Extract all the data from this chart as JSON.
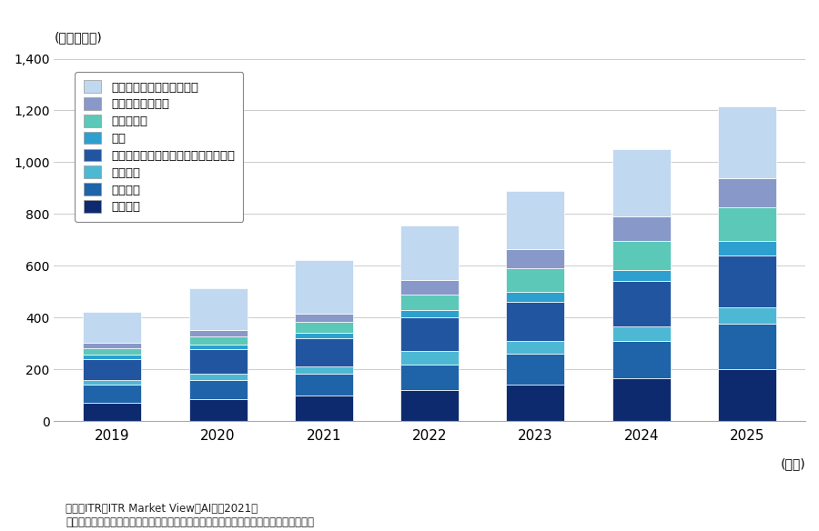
{
  "years": [
    "2019",
    "2020",
    "2021",
    "2022",
    "2023",
    "2024",
    "2025"
  ],
  "categories": [
    "画像認識",
    "音声認識",
    "音声合成",
    "テキスト・マイニング／ナレッジ活用",
    "翻訳",
    "検索・探索",
    "時系列データ分析",
    "機械学習プラットフォーム"
  ],
  "colors": [
    "#0d2a6e",
    "#1f63a8",
    "#4db8d4",
    "#2255a0",
    "#2ea0d0",
    "#5bc8b8",
    "#8898c8",
    "#c0d8f0"
  ],
  "data": {
    "画像認識": [
      70,
      85,
      100,
      120,
      140,
      165,
      200
    ],
    "音声認識": [
      70,
      75,
      85,
      100,
      120,
      145,
      175
    ],
    "音声合成": [
      20,
      22,
      25,
      50,
      50,
      55,
      65
    ],
    "テキスト・マイニング／ナレッジ活用": [
      80,
      95,
      110,
      130,
      150,
      175,
      200
    ],
    "翻訳": [
      18,
      20,
      22,
      30,
      40,
      45,
      55
    ],
    "検索・探索": [
      25,
      30,
      40,
      60,
      90,
      110,
      130
    ],
    "時系列データ分析": [
      20,
      25,
      35,
      55,
      75,
      95,
      115
    ],
    "機械学習プラットフォーム": [
      120,
      160,
      205,
      210,
      225,
      260,
      275
    ]
  },
  "ylabel": "(単位：億円)",
  "xlabel": "(年度)",
  "ylim": [
    0,
    1400
  ],
  "yticks": [
    0,
    200,
    400,
    600,
    800,
    1000,
    1200,
    1400
  ],
  "footnote1": "出典：ITR『ITR Market View：AI市场2021』",
  "footnote2": "＊ベンダーの売上金額を対象とし、３月期ベースで換算。２０２１年度以降は予測値。",
  "background_color": "#ffffff",
  "bar_width": 0.55
}
